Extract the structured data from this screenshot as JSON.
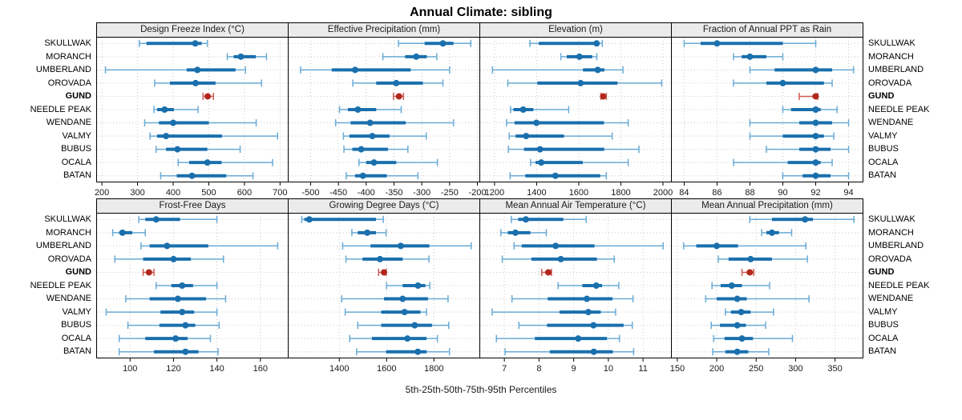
{
  "title": "Annual Climate: sibling",
  "caption": "5th-25th-50th-75th-95th Percentiles",
  "colors": {
    "blue_light": "#69aad5",
    "blue_dark": "#1a6fad",
    "red_light": "#cd5b50",
    "red_dark": "#b2271c",
    "strip_bg": "#ebebeb",
    "grid": "#c9c9c9",
    "border": "#000000",
    "tick_text": "#1a1a1a"
  },
  "chart_data": {
    "type": "trellis-percentile-intervals",
    "percentiles": [
      5,
      25,
      50,
      75,
      95
    ],
    "legend_note": "thin line = 5th-95th, thick line = 25th-75th, dot = 50th percentile",
    "stations": [
      "SKULLWAK",
      "MORANCH",
      "UMBERLAND",
      "OROVADA",
      "GUND",
      "NEEDLE PEAK",
      "WENDANE",
      "VALMY",
      "BUBUS",
      "OCALA",
      "BATAN"
    ],
    "highlight": "GUND",
    "panels": [
      {
        "title": "Design Freeze Index (°C)",
        "row": 1,
        "domain": [
          184,
          724
        ],
        "ticks": [
          200,
          300,
          400,
          500,
          600,
          700
        ],
        "values": [
          [
            305,
            325,
            462,
            480,
            496
          ],
          [
            552,
            570,
            590,
            632,
            662
          ],
          [
            210,
            438,
            468,
            575,
            603
          ],
          [
            348,
            391,
            463,
            519,
            648
          ],
          [
            484,
            489,
            497,
            504,
            513
          ],
          [
            346,
            355,
            376,
            402,
            470
          ],
          [
            320,
            360,
            400,
            500,
            633
          ],
          [
            335,
            355,
            380,
            537,
            693
          ],
          [
            352,
            380,
            412,
            496,
            588
          ],
          [
            414,
            445,
            496,
            536,
            679
          ],
          [
            365,
            410,
            453,
            549,
            624
          ]
        ]
      },
      {
        "title": "Effective Precipitation (mm)",
        "row": 1,
        "domain": [
          -541,
          -195
        ],
        "ticks": [
          -500,
          -450,
          -400,
          -350,
          -300,
          -250,
          -200
        ],
        "values": [
          [
            -342,
            -295,
            -262,
            -243,
            -212
          ],
          [
            -370,
            -330,
            -310,
            -291,
            -273
          ],
          [
            -518,
            -462,
            -420,
            -320,
            -250
          ],
          [
            -424,
            -382,
            -346,
            -298,
            -262
          ],
          [
            -351,
            -346,
            -341,
            -337,
            -333
          ],
          [
            -448,
            -433,
            -415,
            -382,
            -337
          ],
          [
            -455,
            -428,
            -393,
            -329,
            -243
          ],
          [
            -441,
            -430,
            -389,
            -358,
            -292
          ],
          [
            -440,
            -425,
            -409,
            -361,
            -325
          ],
          [
            -413,
            -400,
            -386,
            -346,
            -272
          ],
          [
            -436,
            -420,
            -406,
            -363,
            -307
          ]
        ]
      },
      {
        "title": "Elevation (m)",
        "row": 1,
        "domain": [
          1128,
          2042
        ],
        "ticks": [
          1200,
          1400,
          1600,
          1800,
          2000
        ],
        "values": [
          [
            1368,
            1410,
            1685,
            1697,
            1712
          ],
          [
            1515,
            1543,
            1603,
            1664,
            1686
          ],
          [
            1190,
            1620,
            1690,
            1722,
            1810
          ],
          [
            1263,
            1403,
            1609,
            1784,
            1994
          ],
          [
            1705,
            1710,
            1716,
            1722,
            1731
          ],
          [
            1276,
            1290,
            1336,
            1384,
            1552
          ],
          [
            1257,
            1295,
            1399,
            1720,
            1835
          ],
          [
            1270,
            1300,
            1350,
            1530,
            1759
          ],
          [
            1266,
            1340,
            1416,
            1721,
            1886
          ],
          [
            1371,
            1395,
            1422,
            1619,
            1835
          ],
          [
            1274,
            1346,
            1489,
            1702,
            1731
          ]
        ]
      },
      {
        "title": "Fraction of Annual PPT as Rain",
        "row": 1,
        "domain": [
          83.2,
          94.9
        ],
        "ticks": [
          84,
          86,
          88,
          90,
          92,
          94
        ],
        "values": [
          [
            84,
            85,
            86,
            90,
            92
          ],
          [
            87,
            87.5,
            88,
            89,
            90
          ],
          [
            88,
            89.5,
            92,
            93,
            94.3
          ],
          [
            87,
            89,
            90,
            92.5,
            93
          ],
          [
            91,
            91.8,
            92,
            92.06,
            92.12
          ],
          [
            90,
            90.5,
            92,
            92.3,
            93.3
          ],
          [
            88,
            91,
            92,
            93,
            94
          ],
          [
            88,
            90,
            92,
            92.5,
            93.1
          ],
          [
            89,
            91,
            92,
            92.9,
            94
          ],
          [
            87,
            90.3,
            92,
            92.3,
            93
          ],
          [
            90,
            91.2,
            92,
            92.9,
            94
          ]
        ]
      },
      {
        "title": "Frost-Free Days",
        "row": 2,
        "domain": [
          84.4,
          173
        ],
        "ticks": [
          100,
          120,
          140,
          160
        ],
        "values": [
          [
            104,
            107,
            112,
            123,
            140
          ],
          [
            92,
            95,
            96.5,
            101,
            107
          ],
          [
            105,
            109,
            117,
            136,
            168
          ],
          [
            93,
            106,
            120,
            128,
            143
          ],
          [
            106,
            107.5,
            108.7,
            110,
            111
          ],
          [
            112,
            119,
            124,
            129,
            140
          ],
          [
            98,
            109,
            122,
            135,
            144
          ],
          [
            89,
            114,
            124,
            129.5,
            140
          ],
          [
            99,
            113.5,
            125.5,
            130,
            141
          ],
          [
            95,
            107,
            121,
            126.5,
            137
          ],
          [
            95,
            111,
            125.5,
            131.5,
            140.5
          ]
        ]
      },
      {
        "title": "Growing Degree Days (°C)",
        "row": 2,
        "domain": [
          1182,
          1996
        ],
        "ticks": [
          1400,
          1600,
          1800
        ],
        "values": [
          [
            1241,
            1252,
            1273,
            1555,
            1586
          ],
          [
            1453,
            1478,
            1518,
            1555,
            1598
          ],
          [
            1414,
            1532,
            1660,
            1781,
            1958
          ],
          [
            1428,
            1498,
            1572,
            1668,
            1779
          ],
          [
            1566,
            1580,
            1589,
            1594,
            1598
          ],
          [
            1600,
            1668,
            1733,
            1764,
            1783
          ],
          [
            1410,
            1589,
            1668,
            1775,
            1860
          ],
          [
            1425,
            1577,
            1676,
            1743,
            1769
          ],
          [
            1478,
            1577,
            1719,
            1792,
            1863
          ],
          [
            1444,
            1538,
            1688,
            1769,
            1815
          ],
          [
            1473,
            1598,
            1732,
            1769,
            1866
          ]
        ]
      },
      {
        "title": "Mean Annual Air Temperature (°C)",
        "row": 2,
        "domain": [
          6.28,
          11.83
        ],
        "ticks": [
          7,
          8,
          9,
          10,
          11
        ],
        "values": [
          [
            7.2,
            7.4,
            7.62,
            8.7,
            9.36
          ],
          [
            6.9,
            7.1,
            7.32,
            7.75,
            8.21
          ],
          [
            7.28,
            7.5,
            8.48,
            9.6,
            11.58
          ],
          [
            6.94,
            7.78,
            8.63,
            9.67,
            10.17
          ],
          [
            8.08,
            8.18,
            8.27,
            8.32,
            8.36
          ],
          [
            8.55,
            9.25,
            9.65,
            9.82,
            10.3
          ],
          [
            7.22,
            8.25,
            9.38,
            10.12,
            10.71
          ],
          [
            6.65,
            8.59,
            9.42,
            9.78,
            10.21
          ],
          [
            7.42,
            8.23,
            9.57,
            10.44,
            10.69
          ],
          [
            6.77,
            7.88,
            9.13,
            9.96,
            10.32
          ],
          [
            7.02,
            8.31,
            9.58,
            10.13,
            10.73
          ]
        ]
      },
      {
        "title": "Mean Annual Precipitation (mm)",
        "row": 2,
        "domain": [
          142,
          386
        ],
        "ticks": [
          150,
          200,
          250,
          300,
          350
        ],
        "values": [
          [
            242,
            270,
            312,
            322,
            374
          ],
          [
            257,
            263,
            270,
            279,
            295
          ],
          [
            158,
            174,
            200,
            227,
            313
          ],
          [
            202,
            215,
            243,
            270,
            315
          ],
          [
            232,
            238,
            242,
            244,
            247
          ],
          [
            194,
            205,
            219,
            232,
            267
          ],
          [
            186,
            200,
            226,
            238,
            317
          ],
          [
            211,
            218,
            231,
            243,
            272
          ],
          [
            193,
            204,
            226,
            237,
            262
          ],
          [
            196,
            210,
            232,
            246,
            296
          ],
          [
            195,
            211,
            226,
            240,
            266
          ]
        ]
      }
    ]
  }
}
